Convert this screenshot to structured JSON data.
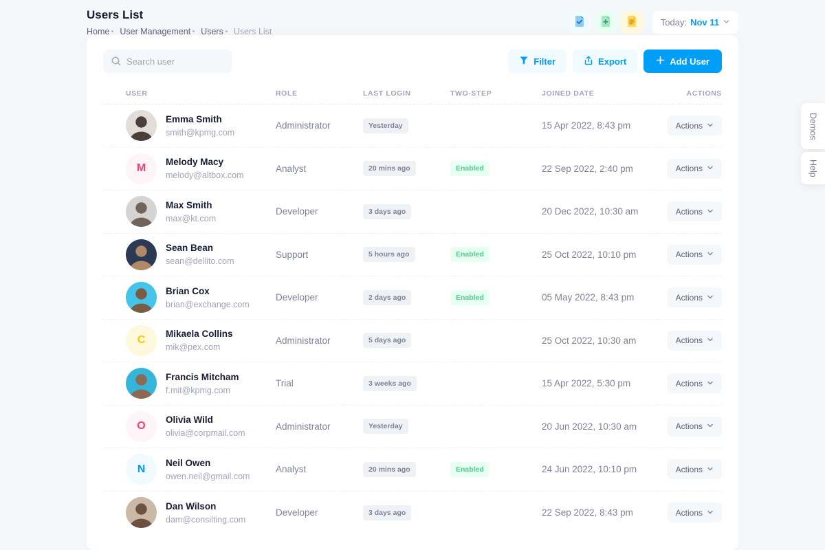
{
  "page": {
    "title": "Users List",
    "breadcrumb": [
      "Home",
      "User Management",
      "Users",
      "Users List"
    ]
  },
  "topbar": {
    "icons": [
      "file-check-icon",
      "file-plus-icon",
      "file-lines-icon"
    ],
    "date_button": {
      "label": "Today:",
      "value": "Nov 11"
    }
  },
  "engage": {
    "demos_label": "Demos",
    "help_label": "Help"
  },
  "toolbar": {
    "search_placeholder": "Search user",
    "filter_label": "Filter",
    "export_label": "Export",
    "add_user_label": "Add User"
  },
  "table": {
    "headers": [
      "USER",
      "ROLE",
      "LAST LOGIN",
      "TWO-STEP",
      "JOINED DATE",
      "ACTIONS"
    ],
    "actions_label": "Actions",
    "two_step_enabled_label": "Enabled",
    "rows": [
      {
        "name": "Emma Smith",
        "email": "smith@kpmg.com",
        "role": "Administrator",
        "last_login": "Yesterday",
        "two_step": "",
        "joined": "15 Apr 2022, 8:43 pm",
        "avatar": {
          "type": "photo",
          "bg": "#e3ddd8",
          "fg": "#4a3f3a"
        }
      },
      {
        "name": "Melody Macy",
        "email": "melody@altbox.com",
        "role": "Analyst",
        "last_login": "20 mins ago",
        "two_step": "Enabled",
        "joined": "22 Sep 2022, 2:40 pm",
        "avatar": {
          "type": "initial",
          "text": "M",
          "bg": "#fff5f8",
          "fg": "#f1416c"
        }
      },
      {
        "name": "Max Smith",
        "email": "max@kt.com",
        "role": "Developer",
        "last_login": "3 days ago",
        "two_step": "",
        "joined": "20 Dec 2022, 10:30 am",
        "avatar": {
          "type": "photo",
          "bg": "#d6d4d2",
          "fg": "#70635a"
        }
      },
      {
        "name": "Sean Bean",
        "email": "sean@dellito.com",
        "role": "Support",
        "last_login": "5 hours ago",
        "two_step": "Enabled",
        "joined": "25 Oct 2022, 10:10 pm",
        "avatar": {
          "type": "photo",
          "bg": "#2b3952",
          "fg": "#b08968"
        }
      },
      {
        "name": "Brian Cox",
        "email": "brian@exchange.com",
        "role": "Developer",
        "last_login": "2 days ago",
        "two_step": "Enabled",
        "joined": "05 May 2022, 8:43 pm",
        "avatar": {
          "type": "photo",
          "bg": "#45c4e9",
          "fg": "#7a5c44"
        }
      },
      {
        "name": "Mikaela Collins",
        "email": "mik@pex.com",
        "role": "Administrator",
        "last_login": "5 days ago",
        "two_step": "",
        "joined": "25 Oct 2022, 10:30 am",
        "avatar": {
          "type": "initial",
          "text": "C",
          "bg": "#fff8dd",
          "fg": "#ffc700"
        }
      },
      {
        "name": "Francis Mitcham",
        "email": "f.mit@kpmg.com",
        "role": "Trial",
        "last_login": "3 weeks ago",
        "two_step": "",
        "joined": "15 Apr 2022, 5:30 pm",
        "avatar": {
          "type": "photo",
          "bg": "#35b6d9",
          "fg": "#8a6a50"
        }
      },
      {
        "name": "Olivia Wild",
        "email": "olivia@corpmail.com",
        "role": "Administrator",
        "last_login": "Yesterday",
        "two_step": "",
        "joined": "20 Jun 2022, 10:30 am",
        "avatar": {
          "type": "initial",
          "text": "O",
          "bg": "#fff5f8",
          "fg": "#f1416c"
        }
      },
      {
        "name": "Neil Owen",
        "email": "owen.neil@gmail.com",
        "role": "Analyst",
        "last_login": "20 mins ago",
        "two_step": "Enabled",
        "joined": "24 Jun 2022, 10:10 pm",
        "avatar": {
          "type": "initial",
          "text": "N",
          "bg": "#f1faff",
          "fg": "#009ef7"
        }
      },
      {
        "name": "Dan Wilson",
        "email": "dam@consilting.com",
        "role": "Developer",
        "last_login": "3 days ago",
        "two_step": "",
        "joined": "22 Sep 2022, 8:43 pm",
        "avatar": {
          "type": "photo",
          "bg": "#cbb9a8",
          "fg": "#6d5140"
        }
      }
    ]
  },
  "colors": {
    "primary": "#009ef7",
    "primary_light": "#f1faff",
    "success": "#50cd89",
    "success_light": "#e8fff3",
    "danger": "#f1416c",
    "danger_light": "#fff5f8",
    "warning": "#ffc700",
    "warning_light": "#fff8dd",
    "page_bg": "#f5f8fa",
    "text_dark": "#181c32",
    "text_gray": "#7e8299",
    "text_muted": "#a1a5b7"
  }
}
